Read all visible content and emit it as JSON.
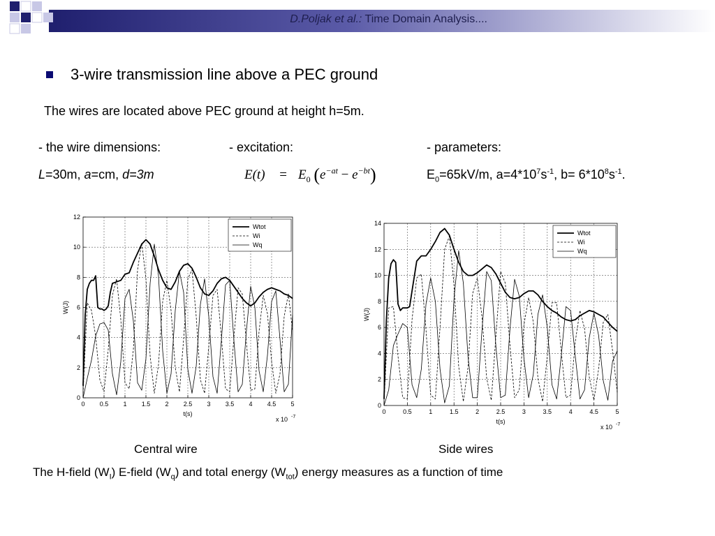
{
  "header": {
    "author": "D.Poljak et al.:",
    "title": " Time Domain Analysis...."
  },
  "heading": "3-wire transmission line above a PEC ground",
  "subheading": "The wires are located above PEC ground at height h=5m.",
  "columns": {
    "dimensions_label": "- the wire dimensions:",
    "excitation_label": "- excitation:",
    "parameters_label": "- parameters:"
  },
  "dimensions": {
    "L_sym": "L",
    "L_val": "=30m, ",
    "a_sym": "a",
    "a_val": "=cm, ",
    "d_sym": "d=3m"
  },
  "formula": {
    "lhs": "E(t)",
    "eq": "=",
    "E": "E",
    "E_sub": "0",
    "e1": "e",
    "e1_exp": "−at",
    "minus": "−",
    "e2": "e",
    "e2_exp": "−bt"
  },
  "parameters": {
    "E": "E",
    "E_sub": "0",
    "p1": "=65kV/m, a=4*10",
    "p1_exp": "7",
    "p2": "s",
    "p2_exp": "-1",
    "p3": ", b= 6*10",
    "p3_exp": "8",
    "p4": "s",
    "p4_exp": "-1",
    "p5": "."
  },
  "captions": {
    "central": "Central  wire",
    "side": "Side  wires"
  },
  "bottom_caption": {
    "t1": "The H-field (W",
    "s1": "I",
    "t2": ") E-field (W",
    "s2": "q",
    "t3": ") and total energy (W",
    "s3": "tot",
    "t4": ") energy measures  as a function of time"
  },
  "colors": {
    "header_blue": "#1f1f6e",
    "header_light": "#c8c8e6",
    "bullet": "#0b0b72"
  },
  "chart_data": [
    {
      "type": "line",
      "title": "",
      "xlabel": "t(s)",
      "ylabel": "W(J)",
      "x_multiplier": "x 10",
      "x_multiplier_exp": "-7",
      "xlim": [
        0,
        5
      ],
      "ylim": [
        0,
        12
      ],
      "xticks": [
        0,
        0.5,
        1,
        1.5,
        2,
        2.5,
        3,
        3.5,
        4,
        4.5,
        5
      ],
      "yticks": [
        0,
        2,
        4,
        6,
        8,
        10,
        12
      ],
      "grid": true,
      "legend": "top-right",
      "series": [
        {
          "name": "Wtot",
          "style": "solid-bold",
          "x": [
            0,
            0.05,
            0.1,
            0.15,
            0.2,
            0.25,
            0.3,
            0.35,
            0.4,
            0.45,
            0.5,
            0.55,
            0.6,
            0.65,
            0.7,
            0.8,
            0.9,
            1.0,
            1.1,
            1.2,
            1.3,
            1.4,
            1.5,
            1.6,
            1.7,
            1.8,
            1.9,
            2.0,
            2.1,
            2.2,
            2.3,
            2.4,
            2.5,
            2.6,
            2.7,
            2.8,
            2.9,
            3.0,
            3.1,
            3.2,
            3.3,
            3.4,
            3.5,
            3.6,
            3.7,
            3.8,
            3.9,
            4.0,
            4.1,
            4.2,
            4.3,
            4.4,
            4.5,
            4.6,
            4.7,
            4.8,
            4.9,
            5.0
          ],
          "y": [
            0.8,
            5.5,
            7.2,
            7.6,
            7.8,
            7.8,
            8.1,
            6.0,
            5.9,
            5.9,
            5.8,
            5.9,
            6.1,
            7.0,
            7.6,
            7.7,
            7.8,
            8.2,
            8.3,
            9.0,
            9.6,
            10.2,
            10.5,
            10.2,
            9.4,
            8.5,
            7.8,
            7.3,
            7.2,
            7.7,
            8.4,
            8.8,
            8.9,
            8.6,
            8.0,
            7.3,
            6.9,
            6.8,
            7.1,
            7.6,
            7.9,
            8.0,
            7.8,
            7.4,
            7.0,
            6.6,
            6.3,
            6.1,
            6.3,
            6.7,
            7.0,
            7.2,
            7.3,
            7.2,
            7.1,
            6.9,
            6.8,
            6.6
          ]
        },
        {
          "name": "Wi",
          "style": "dashed",
          "x": [
            0,
            0.1,
            0.2,
            0.3,
            0.4,
            0.5,
            0.6,
            0.7,
            0.8,
            0.9,
            1.0,
            1.1,
            1.2,
            1.3,
            1.4,
            1.5,
            1.6,
            1.7,
            1.8,
            1.9,
            2.0,
            2.1,
            2.2,
            2.3,
            2.4,
            2.5,
            2.6,
            2.7,
            2.8,
            2.9,
            3.0,
            3.1,
            3.2,
            3.3,
            3.4,
            3.5,
            3.6,
            3.7,
            3.8,
            3.9,
            4.0,
            4.1,
            4.2,
            4.3,
            4.4,
            4.5,
            4.6,
            4.7,
            4.8,
            4.9,
            5.0
          ],
          "y": [
            0.3,
            6.3,
            5.8,
            4.1,
            1.2,
            0.4,
            3.2,
            6.8,
            7.9,
            5.2,
            1.0,
            0.6,
            3.2,
            8.5,
            10.3,
            7.9,
            2.8,
            0.3,
            2.2,
            6.4,
            7.8,
            5.8,
            2.0,
            0.4,
            3.9,
            7.9,
            8.5,
            5.4,
            1.2,
            0.3,
            3.4,
            6.8,
            7.2,
            4.1,
            0.6,
            0.4,
            4.0,
            7.3,
            6.9,
            3.6,
            0.5,
            0.6,
            4.4,
            6.8,
            5.6,
            2.4,
            0.3,
            1.6,
            5.4,
            6.9,
            4.4
          ]
        },
        {
          "name": "Wq",
          "style": "thin",
          "x": [
            0,
            0.1,
            0.2,
            0.3,
            0.4,
            0.5,
            0.6,
            0.7,
            0.8,
            0.9,
            1.0,
            1.1,
            1.2,
            1.3,
            1.4,
            1.5,
            1.6,
            1.7,
            1.8,
            1.9,
            2.0,
            2.1,
            2.2,
            2.3,
            2.4,
            2.5,
            2.6,
            2.7,
            2.8,
            2.9,
            3.0,
            3.1,
            3.2,
            3.3,
            3.4,
            3.5,
            3.6,
            3.7,
            3.8,
            3.9,
            4.0,
            4.1,
            4.2,
            4.3,
            4.4,
            4.5,
            4.6,
            4.7,
            4.8,
            4.9,
            5.0
          ],
          "y": [
            0,
            1.3,
            2.5,
            4.1,
            4.9,
            5.0,
            4.5,
            1.6,
            0.2,
            2.4,
            6.6,
            7.2,
            5.1,
            1.0,
            0.5,
            2.6,
            7.6,
            10.2,
            8.1,
            3.1,
            0.3,
            1.6,
            5.8,
            8.4,
            7.0,
            1.9,
            0.3,
            2.1,
            6.2,
            7.9,
            5.4,
            1.4,
            0.3,
            3.8,
            7.5,
            7.8,
            3.8,
            0.4,
            0.9,
            4.5,
            7.4,
            6.0,
            1.8,
            0.4,
            2.8,
            6.4,
            7.1,
            3.9,
            0.4,
            0.9,
            5.5
          ]
        }
      ]
    },
    {
      "type": "line",
      "title": "",
      "xlabel": "t(s)",
      "ylabel": "W(J)",
      "x_multiplier": "x 10",
      "x_multiplier_exp": "-7",
      "xlim": [
        0,
        5
      ],
      "ylim": [
        0,
        14
      ],
      "xticks": [
        0,
        0.5,
        1,
        1.5,
        2,
        2.5,
        3,
        3.5,
        4,
        4.5,
        5
      ],
      "yticks": [
        0,
        2,
        4,
        6,
        8,
        10,
        12,
        14
      ],
      "grid": true,
      "legend": "top-right",
      "series": [
        {
          "name": "Wtot",
          "style": "solid-bold",
          "x": [
            0,
            0.05,
            0.1,
            0.15,
            0.2,
            0.25,
            0.3,
            0.35,
            0.4,
            0.45,
            0.5,
            0.55,
            0.6,
            0.7,
            0.8,
            0.9,
            1.0,
            1.1,
            1.2,
            1.3,
            1.4,
            1.5,
            1.6,
            1.7,
            1.8,
            1.9,
            2.0,
            2.1,
            2.2,
            2.3,
            2.4,
            2.5,
            2.6,
            2.7,
            2.8,
            2.9,
            3.0,
            3.1,
            3.2,
            3.3,
            3.4,
            3.5,
            3.6,
            3.7,
            3.8,
            3.9,
            4.0,
            4.1,
            4.2,
            4.3,
            4.4,
            4.5,
            4.6,
            4.7,
            4.8,
            4.9,
            5.0
          ],
          "y": [
            0.5,
            6.5,
            9.8,
            10.9,
            11.2,
            11.0,
            7.8,
            7.3,
            7.5,
            7.5,
            7.5,
            7.6,
            8.8,
            11.1,
            11.5,
            11.5,
            12.0,
            12.6,
            13.3,
            13.6,
            13.1,
            12.0,
            11.0,
            10.3,
            10.0,
            10.0,
            10.2,
            10.5,
            10.8,
            10.6,
            10.1,
            9.4,
            8.7,
            8.3,
            8.2,
            8.3,
            8.6,
            8.8,
            8.8,
            8.5,
            8.0,
            7.6,
            7.3,
            7.1,
            6.8,
            6.6,
            6.5,
            6.6,
            6.9,
            7.1,
            7.3,
            7.2,
            7.0,
            6.8,
            6.4,
            6.0,
            5.7
          ]
        },
        {
          "name": "Wi",
          "style": "dashed",
          "x": [
            0,
            0.1,
            0.2,
            0.3,
            0.4,
            0.5,
            0.6,
            0.7,
            0.8,
            0.9,
            1.0,
            1.1,
            1.2,
            1.3,
            1.4,
            1.5,
            1.6,
            1.7,
            1.8,
            1.9,
            2.0,
            2.1,
            2.2,
            2.3,
            2.4,
            2.5,
            2.6,
            2.7,
            2.8,
            2.9,
            3.0,
            3.1,
            3.2,
            3.3,
            3.4,
            3.5,
            3.6,
            3.7,
            3.8,
            3.9,
            4.0,
            4.1,
            4.2,
            4.3,
            4.4,
            4.5,
            4.6,
            4.7,
            4.8,
            4.9,
            5.0
          ],
          "y": [
            0.2,
            7.5,
            7.6,
            3.8,
            0.6,
            0.5,
            6.6,
            9.8,
            10.1,
            5.8,
            0.8,
            0.5,
            6.0,
            12.0,
            13.0,
            9.3,
            3.0,
            0.3,
            2.9,
            8.6,
            9.8,
            6.8,
            2.1,
            0.4,
            5.4,
            10.3,
            9.4,
            4.6,
            0.6,
            1.2,
            6.2,
            8.3,
            6.4,
            2.1,
            0.3,
            3.8,
            7.9,
            7.9,
            4.2,
            0.6,
            0.8,
            4.9,
            7.3,
            5.9,
            2.2,
            0.4,
            2.8,
            6.4,
            7.0,
            4.2,
            1.0
          ]
        },
        {
          "name": "Wq",
          "style": "thin",
          "x": [
            0,
            0.1,
            0.2,
            0.3,
            0.4,
            0.5,
            0.6,
            0.7,
            0.8,
            0.9,
            1.0,
            1.1,
            1.2,
            1.3,
            1.4,
            1.5,
            1.6,
            1.7,
            1.8,
            1.9,
            2.0,
            2.1,
            2.2,
            2.3,
            2.4,
            2.5,
            2.6,
            2.7,
            2.8,
            2.9,
            3.0,
            3.1,
            3.2,
            3.3,
            3.4,
            3.5,
            3.6,
            3.7,
            3.8,
            3.9,
            4.0,
            4.1,
            4.2,
            4.3,
            4.4,
            4.5,
            4.6,
            4.7,
            4.8,
            4.9,
            5.0
          ],
          "y": [
            0,
            1.2,
            4.6,
            5.5,
            6.3,
            6.0,
            1.6,
            0.6,
            2.8,
            7.8,
            9.8,
            8.0,
            2.8,
            0.2,
            1.5,
            8.2,
            11.9,
            9.4,
            3.8,
            0.6,
            0.6,
            5.8,
            10.3,
            9.6,
            4.5,
            0.6,
            0.8,
            5.9,
            9.7,
            8.4,
            3.6,
            0.6,
            2.4,
            7.0,
            8.5,
            6.0,
            1.6,
            0.5,
            3.8,
            7.6,
            7.3,
            3.8,
            0.5,
            1.2,
            5.2,
            7.1,
            5.4,
            1.9,
            0.4,
            3.4,
            4.2
          ]
        }
      ]
    }
  ]
}
